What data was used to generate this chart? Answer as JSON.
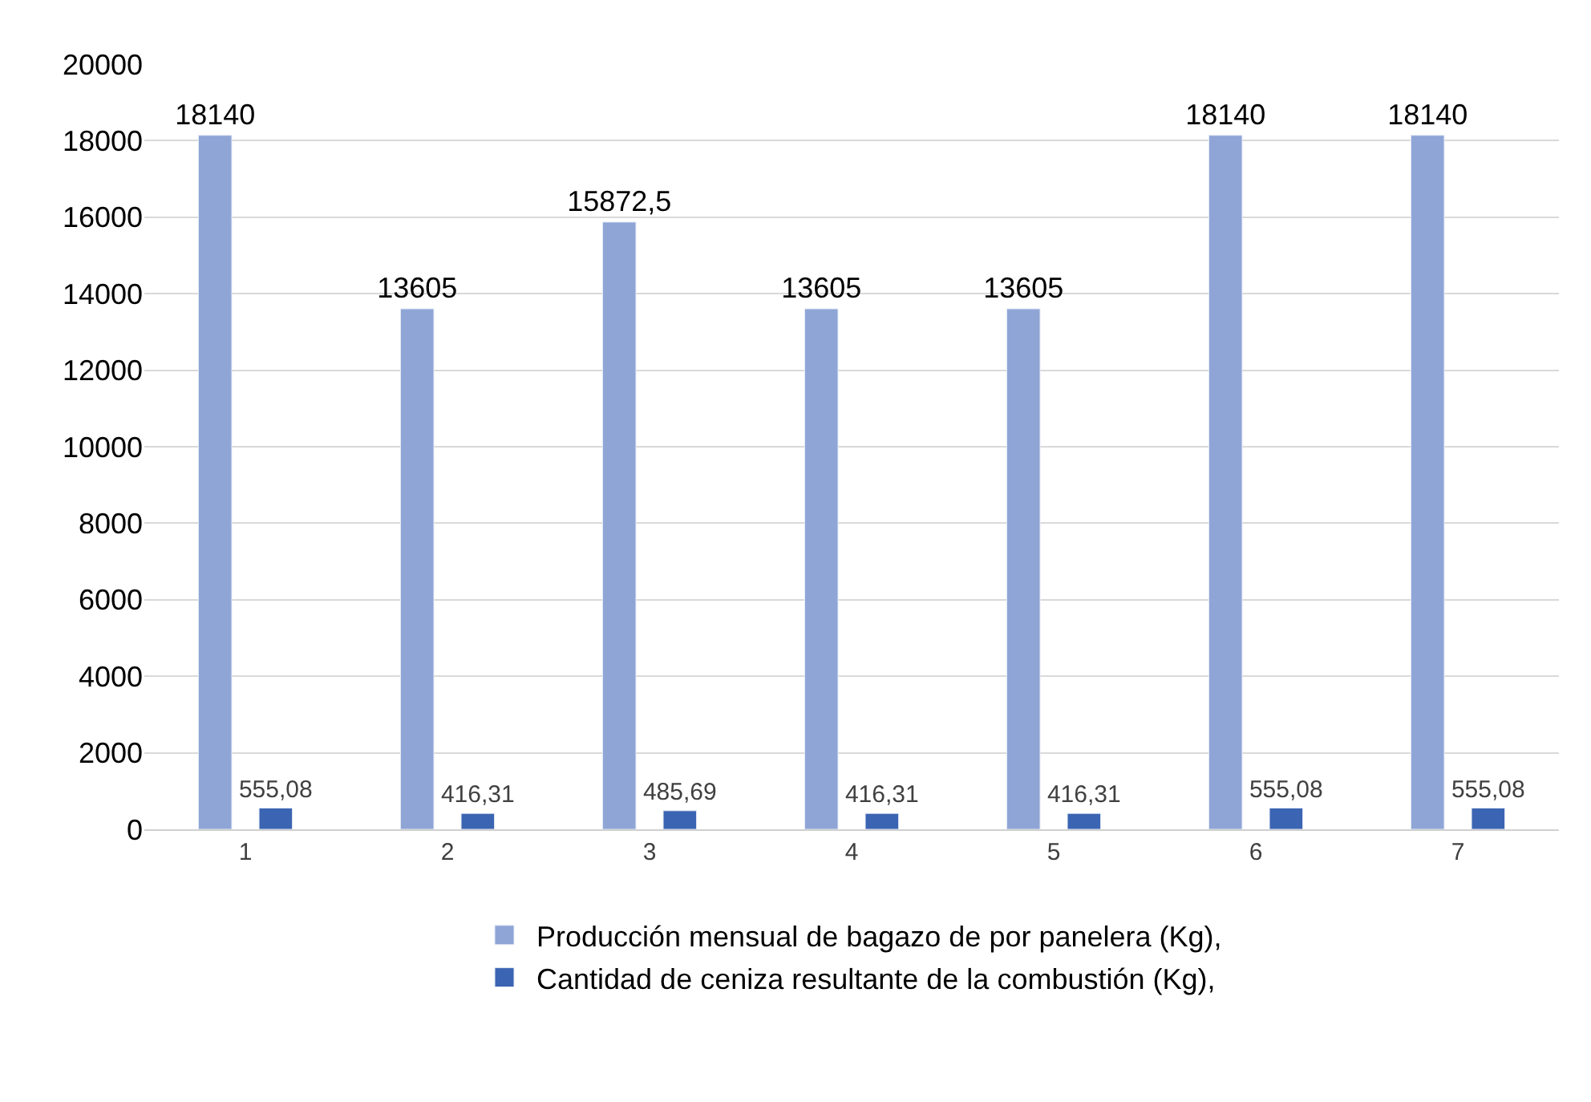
{
  "chart_data": {
    "type": "bar",
    "categories": [
      "1",
      "2",
      "3",
      "4",
      "5",
      "6",
      "7"
    ],
    "series": [
      {
        "name": "Producción mensual de bagazo de por panelera (Kg),",
        "color": "#8fa5d6",
        "values": [
          18140,
          13605,
          15872.5,
          13605,
          13605,
          18140,
          18140
        ],
        "value_labels": [
          "18140",
          "13605",
          "15872,5",
          "13605",
          "13605",
          "18140",
          "18140"
        ]
      },
      {
        "name": "Cantidad de ceniza resultante de la combustión (Kg),",
        "color": "#3b64b2",
        "values": [
          555.08,
          416.31,
          485.69,
          416.31,
          416.31,
          555.08,
          555.08
        ],
        "value_labels": [
          "555,08",
          "416,31",
          "485,69",
          "416,31",
          "416,31",
          "555,08",
          "555,08"
        ]
      }
    ],
    "ylim": [
      0,
      20000
    ],
    "yticks": [
      0,
      2000,
      4000,
      6000,
      8000,
      10000,
      12000,
      14000,
      16000,
      18000,
      20000
    ],
    "grid": "y",
    "legend": "bottom"
  }
}
